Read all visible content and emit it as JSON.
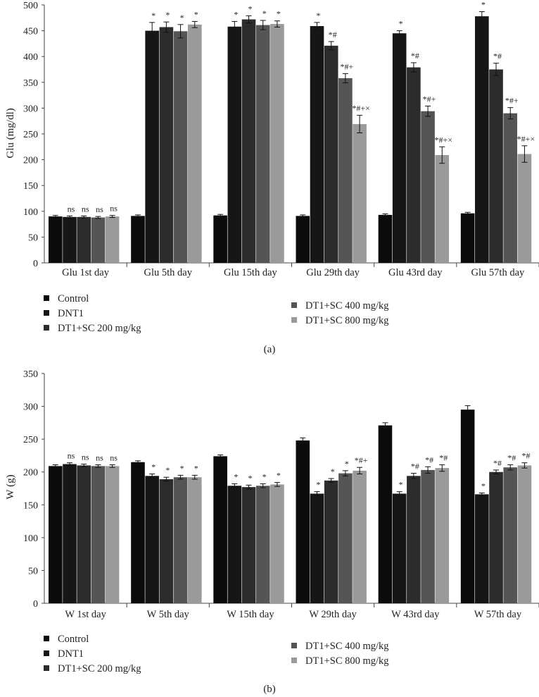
{
  "colors": [
    "#0b0b0b",
    "#161616",
    "#2c2c2c",
    "#555555",
    "#9a9a9a"
  ],
  "chart_data": [
    {
      "type": "bar",
      "panel_label": "(a)",
      "ylabel": "Glu (mg/dl)",
      "ylim": [
        0,
        500
      ],
      "yticks": [
        0,
        50,
        100,
        150,
        200,
        250,
        300,
        350,
        400,
        450,
        500
      ],
      "grid": false,
      "legend_position": "bottom",
      "categories": [
        "Glu 1st day",
        "Glu 5th day",
        "Glu 15th day",
        "Glu 29th day",
        "Glu 43rd day",
        "Glu 57th day"
      ],
      "series": [
        {
          "name": "Control",
          "values": [
            90,
            91,
            92,
            91,
            93,
            96
          ],
          "errors": [
            2,
            2,
            2,
            2,
            2,
            2
          ],
          "marks": [
            "",
            "",
            "",
            "",
            "",
            ""
          ]
        },
        {
          "name": "DNT1",
          "values": [
            89,
            450,
            458,
            459,
            445,
            478
          ],
          "errors": [
            2,
            16,
            10,
            7,
            5,
            9
          ],
          "marks": [
            "ns",
            "*",
            "*",
            "*",
            "*",
            "*"
          ]
        },
        {
          "name": "DT1+SC 200 mg/kg",
          "values": [
            89,
            457,
            472,
            421,
            379,
            375
          ],
          "errors": [
            2,
            10,
            7,
            8,
            9,
            12
          ],
          "marks": [
            "ns",
            "*",
            "*",
            "*#",
            "*#",
            "*#"
          ]
        },
        {
          "name": "DT1+SC 400 mg/kg",
          "values": [
            88,
            449,
            461,
            358,
            294,
            290
          ],
          "errors": [
            2,
            13,
            9,
            9,
            10,
            11
          ],
          "marks": [
            "ns",
            "*",
            "*",
            "*#+",
            "*#+",
            "*#+"
          ]
        },
        {
          "name": "DT1+SC 800 mg/kg",
          "values": [
            90,
            462,
            463,
            269,
            209,
            211
          ],
          "errors": [
            2,
            6,
            6,
            17,
            16,
            16
          ],
          "marks": [
            "ns",
            "*",
            "*",
            "*#+×",
            "*#+×",
            "*#+×"
          ]
        }
      ]
    },
    {
      "type": "bar",
      "panel_label": "(b)",
      "ylabel": "W (g)",
      "ylim": [
        0,
        350
      ],
      "yticks": [
        0,
        50,
        100,
        150,
        200,
        250,
        300,
        350
      ],
      "grid": false,
      "legend_position": "bottom",
      "categories": [
        "W 1st day",
        "W 5th day",
        "W 15th day",
        "W 29th day",
        "W 43rd day",
        "W 57th day"
      ],
      "series": [
        {
          "name": "Control",
          "values": [
            209,
            215,
            224,
            248,
            271,
            295
          ],
          "errors": [
            2,
            2,
            2,
            4,
            4,
            6
          ],
          "marks": [
            "",
            "",
            "",
            "",
            "",
            ""
          ]
        },
        {
          "name": "DNT1",
          "values": [
            212,
            194,
            179,
            167,
            167,
            166
          ],
          "errors": [
            2,
            3,
            3,
            3,
            3,
            2
          ],
          "marks": [
            "ns",
            "*",
            "*",
            "*",
            "*",
            "*"
          ]
        },
        {
          "name": "DT1+SC 200 mg/kg",
          "values": [
            210,
            189,
            177,
            187,
            194,
            200
          ],
          "errors": [
            2,
            3,
            3,
            3,
            4,
            3
          ],
          "marks": [
            "ns",
            "*",
            "*",
            "*",
            "*#",
            "*#"
          ]
        },
        {
          "name": "DT1+SC 400 mg/kg",
          "values": [
            209,
            192,
            179,
            198,
            203,
            207
          ],
          "errors": [
            2,
            3,
            3,
            4,
            5,
            4
          ],
          "marks": [
            "ns",
            "*",
            "*",
            "*",
            "*#",
            "*#"
          ]
        },
        {
          "name": "DT1+SC 800 mg/kg",
          "values": [
            209,
            192,
            181,
            202,
            206,
            210
          ],
          "errors": [
            2,
            3,
            3,
            5,
            5,
            4
          ],
          "marks": [
            "ns",
            "*",
            "*",
            "*#+",
            "*#",
            "*#"
          ]
        }
      ]
    }
  ]
}
